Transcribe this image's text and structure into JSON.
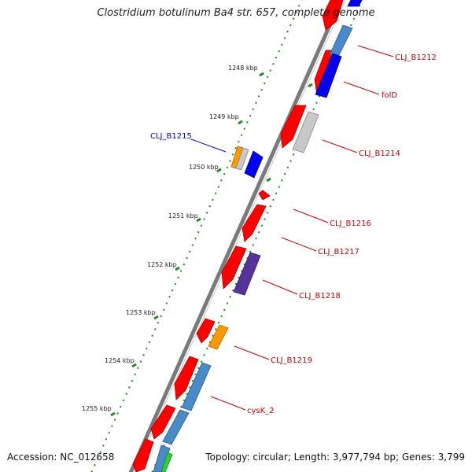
{
  "title": "Clostridium botulinum Ba4 str. 657, complete genome",
  "accession": "Accession: NC_012658",
  "summary": "Topology: circular; Length: 3,977,794 bp; Genes: 3,799",
  "colors": {
    "backbone": "#7a7a7a",
    "forward_cds": "#ff0000",
    "tick": "#228822",
    "label_forward": "#cc0000",
    "label_reverse": "#0000cc"
  },
  "scale_labels": [
    "1248 kbp",
    "1249 kbp",
    "1250 kbp",
    "1251 kbp",
    "1252 kbp",
    "1253 kbp",
    "1254 kbp",
    "1255 kbp"
  ],
  "gene_labels": [
    {
      "name": "CLJ_B1212",
      "strand": "forward"
    },
    {
      "name": "folD",
      "strand": "forward"
    },
    {
      "name": "CLJ_B1215",
      "strand": "reverse"
    },
    {
      "name": "CLJ_B1214",
      "strand": "forward"
    },
    {
      "name": "CLJ_B1216",
      "strand": "forward"
    },
    {
      "name": "CLJ_B1217",
      "strand": "forward"
    },
    {
      "name": "CLJ_B1218",
      "strand": "forward"
    },
    {
      "name": "CLJ_B1219",
      "strand": "forward"
    },
    {
      "name": "cysK_2",
      "strand": "forward"
    }
  ]
}
